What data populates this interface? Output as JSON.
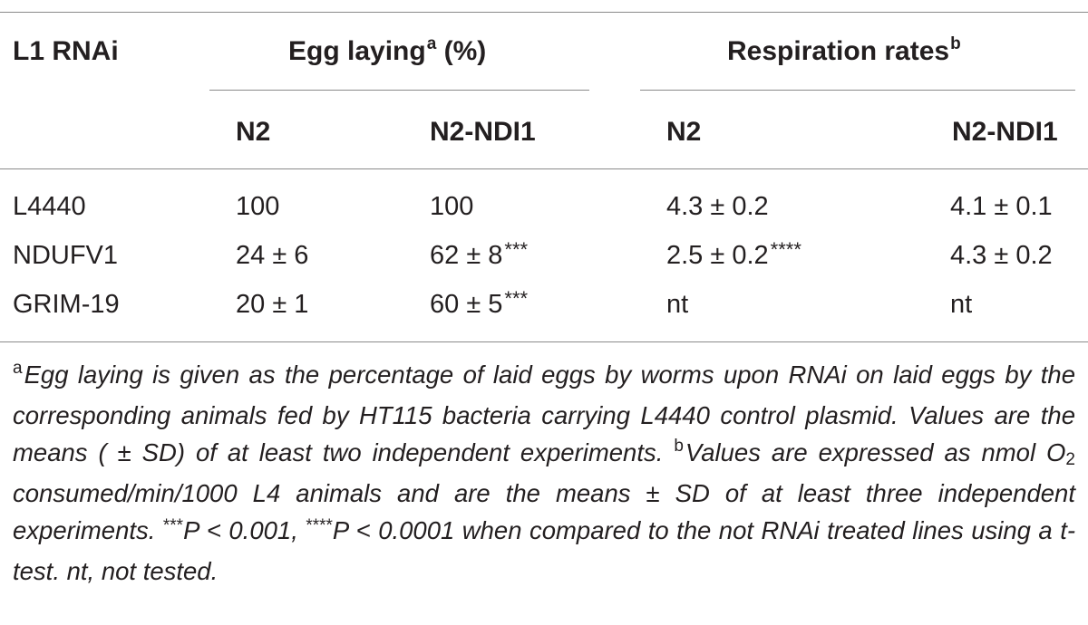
{
  "table": {
    "header": {
      "row_label": "L1 RNAi",
      "group1": {
        "label": "Egg laying",
        "mark": "a",
        "suffix": " (%)"
      },
      "group2": {
        "label": "Respiration rates",
        "mark": "b"
      },
      "subcols": [
        "N2",
        "N2-NDI1",
        "N2",
        "N2-NDI1"
      ]
    },
    "rows": [
      {
        "label": "L4440",
        "egg_n2": "100",
        "egg_ndi1": "100",
        "egg_ndi1_sig": "",
        "resp_n2": "4.3 ± 0.2",
        "resp_n2_sig": "",
        "resp_ndi1": "4.1 ± 0.1"
      },
      {
        "label": "NDUFV1",
        "egg_n2": "24 ± 6",
        "egg_ndi1": "62 ± 8",
        "egg_ndi1_sig": "***",
        "resp_n2": "2.5 ± 0.2",
        "resp_n2_sig": "****",
        "resp_ndi1": "4.3 ± 0.2"
      },
      {
        "label": "GRIM-19",
        "egg_n2": "20 ± 1",
        "egg_ndi1": "60 ± 5",
        "egg_ndi1_sig": "***",
        "resp_n2": "nt",
        "resp_n2_sig": "",
        "resp_ndi1": "nt"
      }
    ]
  },
  "footnotes": {
    "a_mark": "a",
    "a_text": "Egg laying is given as the percentage of laid eggs by worms upon RNAi on laid eggs by the corresponding animals fed by HT115 bacteria carrying L4440 control plasmid. Values are the means ( ± SD) of at least two independent experiments. ",
    "b_mark": "b",
    "b_text_1": "Values are expressed as nmol O",
    "b_sub": "2",
    "b_text_2": " consumed/min/1000 L4 animals and are the means ± SD of at least three independent experiments. ",
    "sig1_mark": "***",
    "sig1_text": "P < 0.001, ",
    "sig2_mark": "****",
    "sig2_text": "P < 0.0001 when compared to the not RNAi treated lines using a t-test. nt, not tested."
  }
}
